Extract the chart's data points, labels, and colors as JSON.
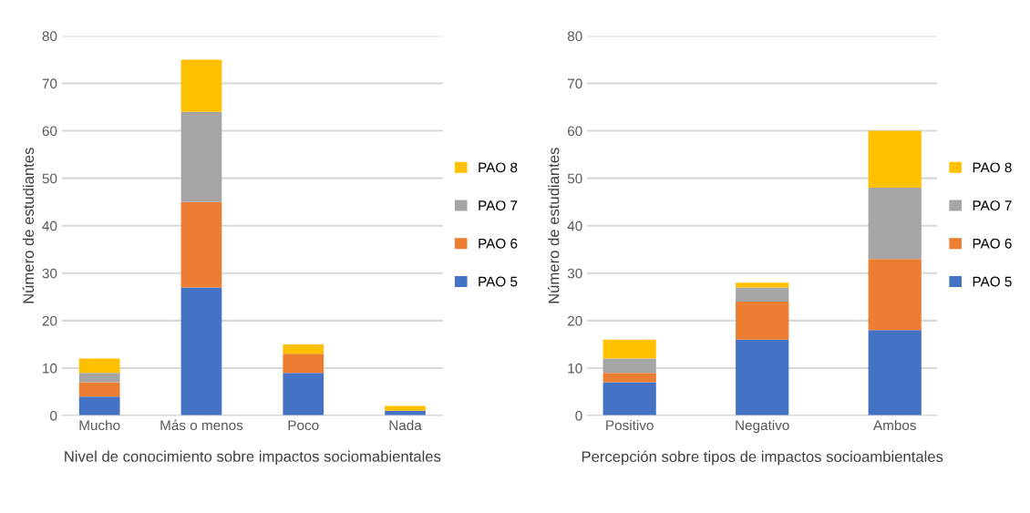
{
  "chart_data": [
    {
      "type": "bar",
      "stacked": true,
      "xlabel": "Nivel de conocimiento sobre impactos sociomabientales",
      "ylabel": "Número de estudiantes",
      "categories": [
        "Mucho",
        "Más o menos",
        "Poco",
        "Nada"
      ],
      "series": [
        {
          "name": "PAO 5",
          "color": "#4472c4",
          "values": [
            4,
            27,
            9,
            1
          ]
        },
        {
          "name": "PAO 6",
          "color": "#ed7d31",
          "values": [
            3,
            18,
            4,
            0
          ]
        },
        {
          "name": "PAO 7",
          "color": "#a5a5a5",
          "values": [
            2,
            19,
            0,
            0
          ]
        },
        {
          "name": "PAO 8",
          "color": "#ffc000",
          "values": [
            3,
            11,
            2,
            1
          ]
        }
      ],
      "ylim": [
        0,
        80
      ],
      "yticks": [
        0,
        10,
        20,
        30,
        40,
        50,
        60,
        70,
        80
      ],
      "grid": "y",
      "legend": "right"
    },
    {
      "type": "bar",
      "stacked": true,
      "xlabel": "Percepción sobre tipos de impactos socioambientales",
      "ylabel": "Número de estudiantes",
      "categories": [
        "Positivo",
        "Negativo",
        "Ambos"
      ],
      "series": [
        {
          "name": "PAO 5",
          "color": "#4472c4",
          "values": [
            7,
            16,
            18
          ]
        },
        {
          "name": "PAO 6",
          "color": "#ed7d31",
          "values": [
            2,
            8,
            15
          ]
        },
        {
          "name": "PAO 7",
          "color": "#a5a5a5",
          "values": [
            3,
            3,
            15
          ]
        },
        {
          "name": "PAO 8",
          "color": "#ffc000",
          "values": [
            4,
            1,
            12
          ]
        }
      ],
      "ylim": [
        0,
        80
      ],
      "yticks": [
        0,
        10,
        20,
        30,
        40,
        50,
        60,
        70,
        80
      ],
      "grid": "y",
      "legend": "right"
    }
  ]
}
